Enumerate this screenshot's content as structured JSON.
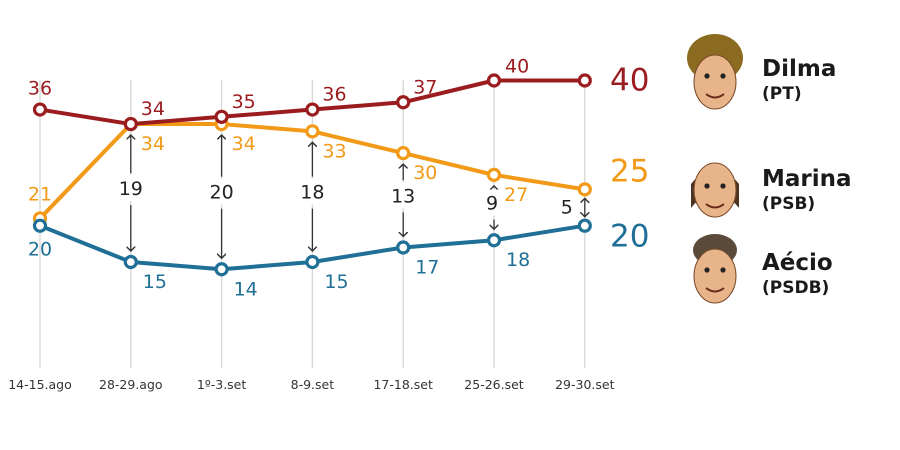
{
  "chart_data": {
    "type": "line",
    "title": "",
    "xlabel": "",
    "ylabel": "",
    "ylim": [
      10,
      40
    ],
    "grid": "vertical",
    "legend": "right",
    "categories": [
      "14-15.ago",
      "28-29.ago",
      "1º-3.set",
      "8-9.set",
      "17-18.set",
      "25-26.set",
      "29-30.set"
    ],
    "series": [
      {
        "name": "Dilma",
        "party": "(PT)",
        "color": "#9b1c1f",
        "values": [
          36,
          34,
          35,
          36,
          37,
          40,
          40
        ],
        "final_label": "40"
      },
      {
        "name": "Marina",
        "party": "(PSB)",
        "color": "#f29a17",
        "values": [
          21,
          34,
          34,
          33,
          30,
          27,
          25
        ],
        "final_label": "25"
      },
      {
        "name": "Aécio",
        "party": "(PSDB)",
        "color": "#1f6f96",
        "values": [
          20,
          15,
          14,
          15,
          17,
          18,
          20
        ],
        "final_label": "20"
      }
    ],
    "gap_annotations": [
      "19",
      "20",
      "18",
      "13",
      "9",
      "5"
    ],
    "icons": [
      "dilma-caricature-icon",
      "marina-caricature-icon",
      "aecio-caricature-icon"
    ]
  }
}
